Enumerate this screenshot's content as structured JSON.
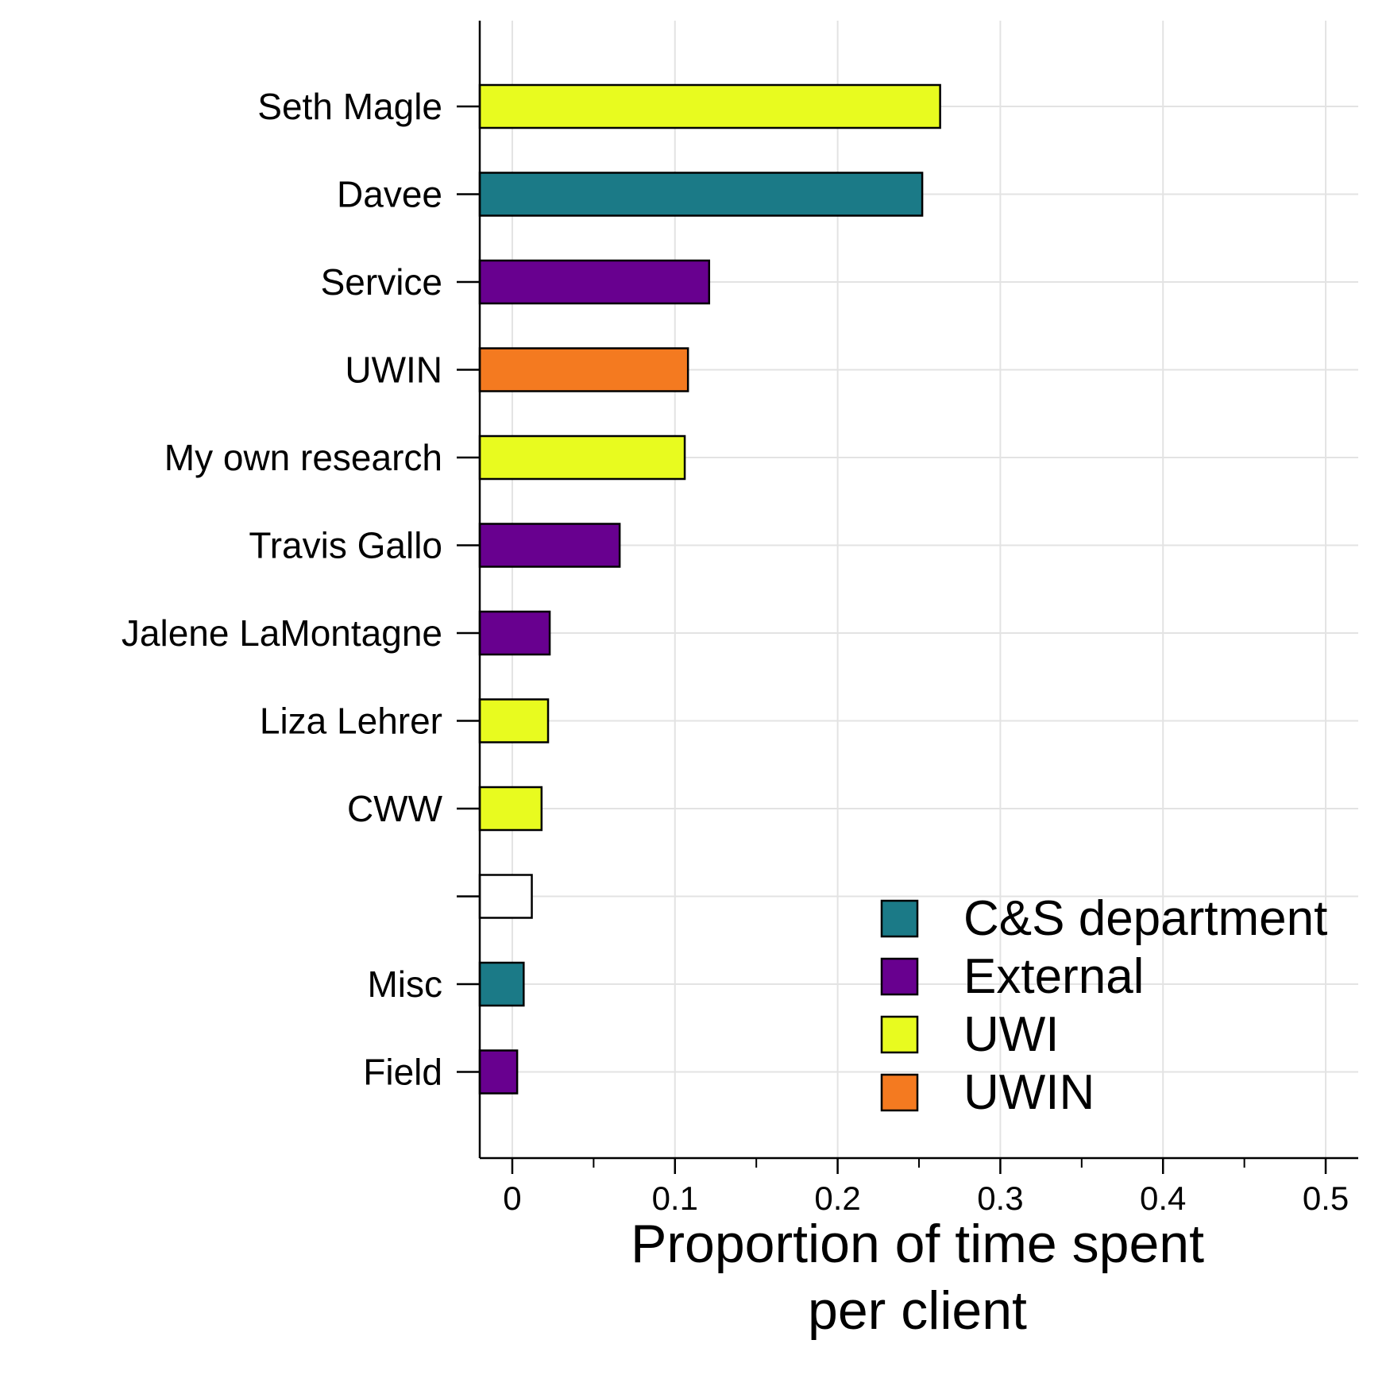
{
  "chart_data": {
    "type": "bar",
    "orientation": "horizontal",
    "categories": [
      "Seth Magle",
      "Davee",
      "Service",
      "UWIN",
      "My own research",
      "Travis Gallo",
      "Jalene LaMontagne",
      "Liza Lehrer",
      "CWW",
      "",
      "Misc",
      "Field"
    ],
    "values": [
      0.263,
      0.252,
      0.121,
      0.108,
      0.106,
      0.066,
      0.023,
      0.022,
      0.018,
      0.012,
      0.007,
      0.003
    ],
    "groups": [
      "UWI",
      "C&S department",
      "External",
      "UWIN",
      "UWI",
      "External",
      "External",
      "UWI",
      "UWI",
      "",
      "C&S department",
      "External"
    ],
    "xlabel_lines": [
      "Proportion of time spent",
      "per client"
    ],
    "ylabel": "",
    "xlim": [
      -0.02,
      0.52
    ],
    "x_ticks": [
      0,
      0.1,
      0.2,
      0.3,
      0.4,
      0.5
    ],
    "x_tick_labels": [
      "0",
      "0.1",
      "0.2",
      "0.3",
      "0.4",
      "0.5"
    ],
    "x_minor_ticks": [
      0.05,
      0.15,
      0.25,
      0.35,
      0.45
    ],
    "grid": true,
    "legend": {
      "placement": "bottom-right",
      "entries": [
        {
          "label": "C&S department",
          "color": "#1b7a87"
        },
        {
          "label": "External",
          "color": "#68008f"
        },
        {
          "label": "UWI",
          "color": "#e8fb1f"
        },
        {
          "label": "UWIN",
          "color": "#f47a20"
        }
      ]
    },
    "colors": {
      "C&S department": "#1b7a87",
      "External": "#68008f",
      "UWI": "#e8fb1f",
      "UWIN": "#f47a20",
      "none": "#ffffff",
      "grid": "#e3e3e3",
      "outline": "#000000"
    }
  }
}
